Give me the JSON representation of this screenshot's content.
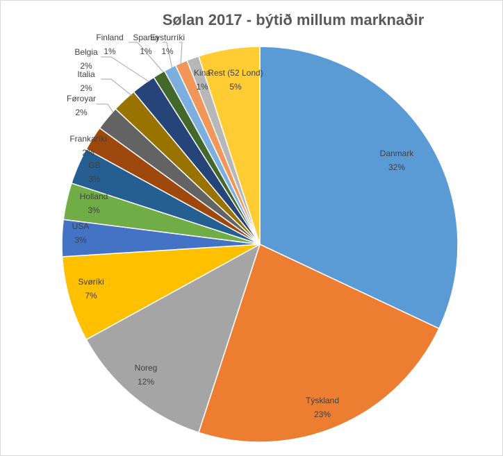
{
  "chart_data": {
    "type": "pie",
    "title": "Sølan 2017 - býtið millum marknaðir",
    "slices": [
      {
        "label": "Danmark",
        "value": 32,
        "value_label": "32%",
        "color": "#5b9bd5"
      },
      {
        "label": "Týskland",
        "value": 23,
        "value_label": "23%",
        "color": "#ed7d31"
      },
      {
        "label": "Noreg",
        "value": 12,
        "value_label": "12%",
        "color": "#a5a5a5"
      },
      {
        "label": "Svøríki",
        "value": 7,
        "value_label": "7%",
        "color": "#ffc000"
      },
      {
        "label": "USA",
        "value": 3,
        "value_label": "3%",
        "color": "#4472c4"
      },
      {
        "label": "Holland",
        "value": 3,
        "value_label": "3%",
        "color": "#70ad47"
      },
      {
        "label": "GB",
        "value": 3,
        "value_label": "3%",
        "color": "#255e91"
      },
      {
        "label": "Frankaríki",
        "value": 2,
        "value_label": "2%",
        "color": "#9e480e"
      },
      {
        "label": "Føroyar",
        "value": 2,
        "value_label": "2%",
        "color": "#636363"
      },
      {
        "label": "Italia",
        "value": 2,
        "value_label": "2%",
        "color": "#997300"
      },
      {
        "label": "Belgia",
        "value": 2,
        "value_label": "2%",
        "color": "#264478"
      },
      {
        "label": "Finland",
        "value": 1,
        "value_label": "1%",
        "color": "#43682b"
      },
      {
        "label": "Spania",
        "value": 1,
        "value_label": "1%",
        "color": "#7cafdd"
      },
      {
        "label": "Eysturríki",
        "value": 1,
        "value_label": "1%",
        "color": "#f1975a"
      },
      {
        "label": "Kina",
        "value": 1,
        "value_label": "1%",
        "color": "#b7b7b7"
      },
      {
        "label": "Rest (52 Lond)",
        "value": 5,
        "value_label": "5%",
        "color": "#ffcd33"
      }
    ]
  }
}
